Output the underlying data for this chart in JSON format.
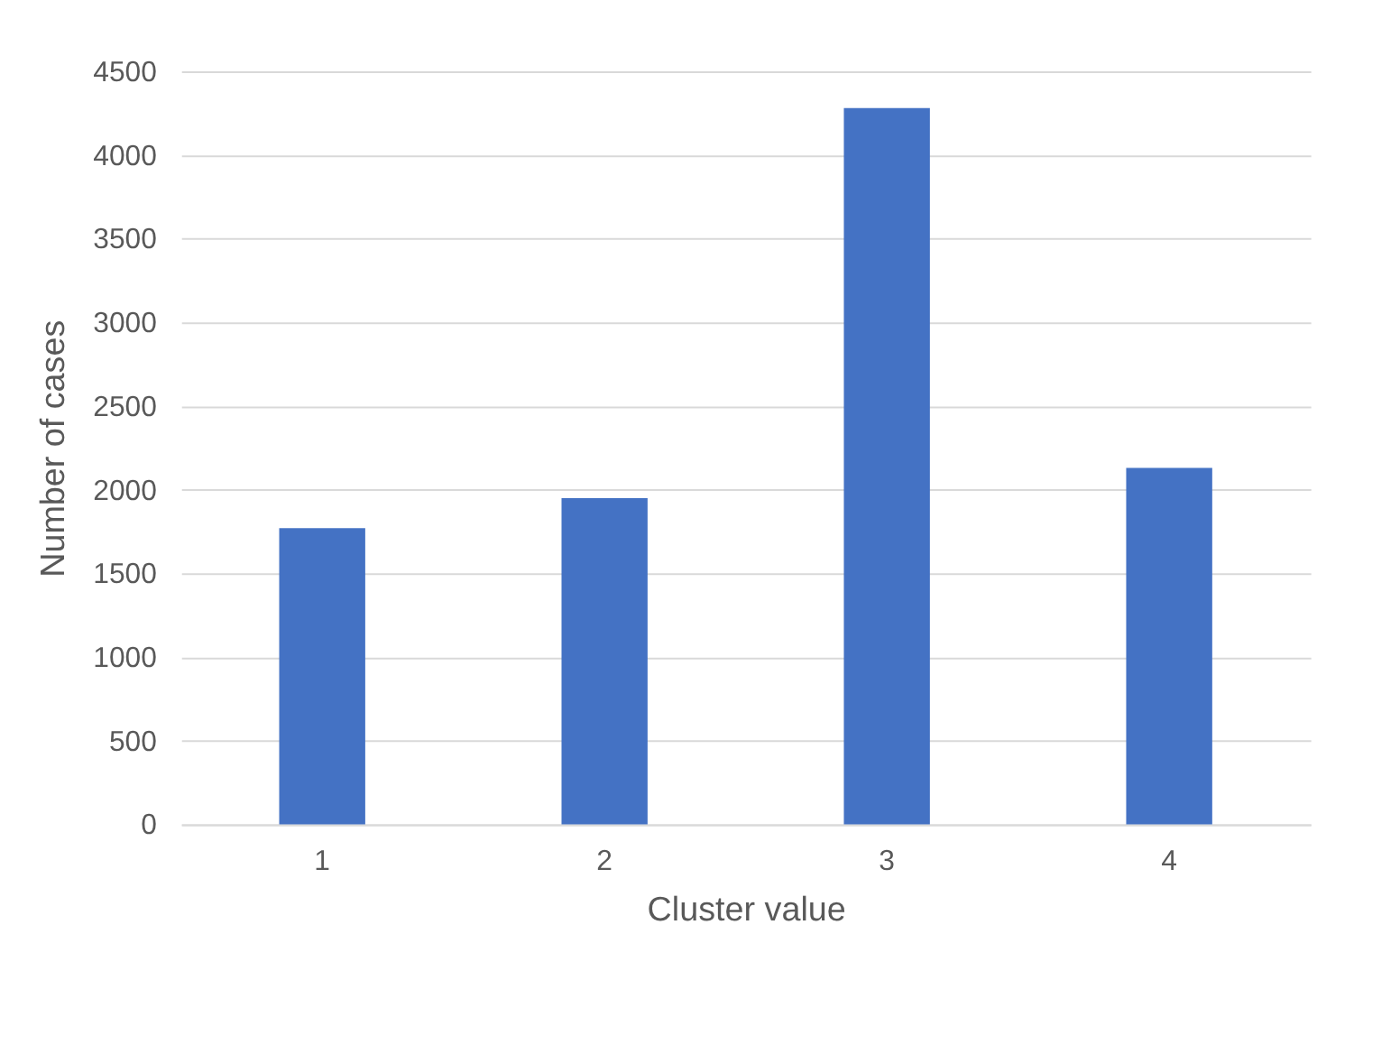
{
  "chart_data": {
    "type": "bar",
    "xlabel": "Cluster value",
    "ylabel": "Number of cases",
    "categories": [
      "1",
      "2",
      "3",
      "4"
    ],
    "values": [
      1770,
      1950,
      4280,
      2130
    ],
    "color": "#4472c4",
    "ylim": [
      0,
      4500
    ],
    "yticks": [
      0,
      500,
      1000,
      1500,
      2000,
      2500,
      3000,
      3500,
      4000,
      4500
    ],
    "grid": "y"
  }
}
